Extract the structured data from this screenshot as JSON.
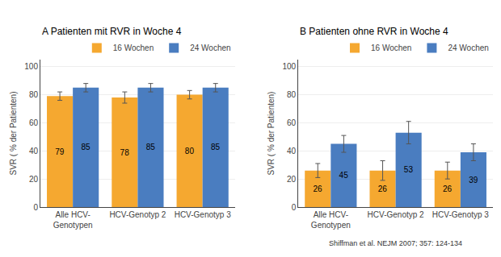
{
  "chart_data": [
    {
      "type": "bar",
      "title": "A Patienten mit RVR in Woche 4",
      "ylabel": "SVR ( % der Patienten)",
      "categories": [
        "Alle HCV-\nGenotypen",
        "HCV-Genotyp 2",
        "HCV-Genotyp 3"
      ],
      "series": [
        {
          "name": "16 Wochen",
          "color": "#F5A830",
          "values": [
            79,
            78,
            80
          ],
          "errors": [
            3,
            4,
            3
          ]
        },
        {
          "name": "24 Wochen",
          "color": "#4A7DC0",
          "values": [
            85,
            85,
            85
          ],
          "errors": [
            3,
            3,
            3
          ]
        }
      ],
      "ylim": [
        0,
        105
      ],
      "yticks": [
        0,
        20,
        40,
        60,
        80,
        100
      ],
      "grid": true,
      "legend": "upper right",
      "data_labels": true
    },
    {
      "type": "bar",
      "title": "B Patienten ohne RVR in Woche 4",
      "ylabel": "SVR ( % der Patienten)",
      "categories": [
        "Alle HCV-\nGenotypen",
        "HCV-Genotyp 2",
        "HCV-Genotyp 3"
      ],
      "series": [
        {
          "name": "16 Wochen",
          "color": "#F5A830",
          "values": [
            26,
            26,
            26
          ],
          "errors": [
            5,
            7,
            6
          ]
        },
        {
          "name": "24 Wochen",
          "color": "#4A7DC0",
          "values": [
            45,
            53,
            39
          ],
          "errors": [
            6,
            8,
            6
          ]
        }
      ],
      "ylim": [
        0,
        105
      ],
      "yticks": [
        0,
        20,
        40,
        60,
        80,
        100
      ],
      "grid": true,
      "legend": "upper right",
      "data_labels": true,
      "annotations": [
        "Shiffman et al. NEJM 2007; 357: 124-134"
      ]
    }
  ]
}
